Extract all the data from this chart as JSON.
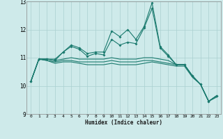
{
  "xlabel": "Humidex (Indice chaleur)",
  "ylabel": "",
  "xlim": [
    -0.5,
    23.5
  ],
  "ylim": [
    9,
    13
  ],
  "yticks": [
    9,
    10,
    11,
    12,
    13
  ],
  "xticks": [
    0,
    1,
    2,
    3,
    4,
    5,
    6,
    7,
    8,
    9,
    10,
    11,
    12,
    13,
    14,
    15,
    16,
    17,
    18,
    19,
    20,
    21,
    22,
    23
  ],
  "bg_color": "#ceeaea",
  "line_color": "#1a7a6e",
  "grid_color": "#aad0d0",
  "series": [
    [
      10.15,
      10.95,
      10.95,
      10.95,
      11.2,
      11.45,
      11.35,
      11.15,
      11.2,
      11.2,
      11.95,
      11.75,
      12.0,
      11.65,
      12.1,
      12.95,
      11.4,
      11.1,
      10.75,
      10.75,
      10.35,
      10.05,
      9.45,
      9.65
    ],
    [
      10.15,
      10.95,
      10.95,
      10.9,
      11.2,
      11.4,
      11.3,
      11.05,
      11.15,
      11.1,
      11.65,
      11.45,
      11.55,
      11.5,
      12.05,
      12.75,
      11.35,
      11.05,
      10.75,
      10.75,
      10.35,
      10.05,
      9.45,
      9.65
    ],
    [
      10.15,
      10.95,
      10.95,
      10.9,
      10.95,
      11.0,
      10.95,
      10.95,
      10.95,
      10.95,
      11.0,
      10.95,
      10.95,
      10.95,
      11.0,
      11.0,
      10.95,
      10.9,
      10.75,
      10.75,
      10.35,
      10.05,
      9.45,
      9.65
    ],
    [
      10.15,
      10.95,
      10.9,
      10.85,
      10.9,
      10.9,
      10.85,
      10.85,
      10.85,
      10.85,
      10.9,
      10.85,
      10.85,
      10.85,
      10.9,
      10.9,
      10.85,
      10.8,
      10.75,
      10.75,
      10.35,
      10.05,
      9.45,
      9.65
    ],
    [
      10.15,
      10.95,
      10.9,
      10.8,
      10.85,
      10.85,
      10.8,
      10.75,
      10.75,
      10.75,
      10.8,
      10.75,
      10.75,
      10.75,
      10.8,
      10.85,
      10.8,
      10.75,
      10.7,
      10.7,
      10.3,
      10.05,
      9.45,
      9.6
    ]
  ],
  "markers": [
    true,
    true,
    false,
    false,
    false
  ]
}
